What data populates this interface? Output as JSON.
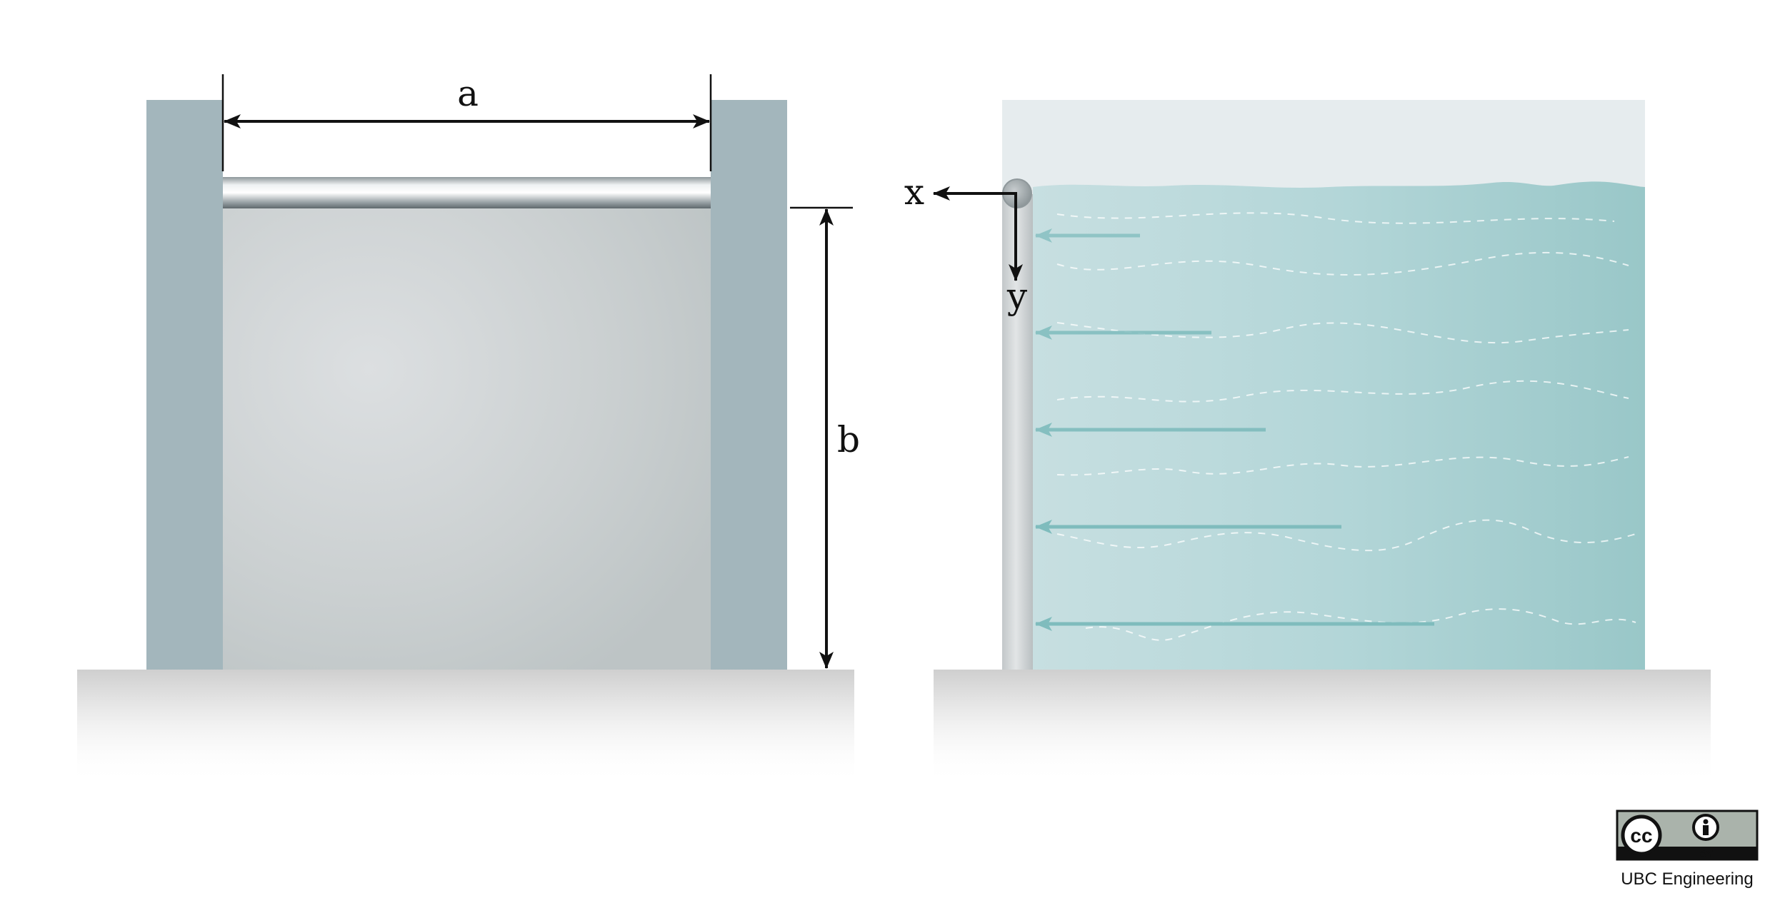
{
  "figure": {
    "left_panel": {
      "width_label": "a",
      "height_label": "b"
    },
    "right_panel": {
      "x_axis_label": "x",
      "y_axis_label": "y",
      "pressure_arrow_count": 5
    },
    "license": {
      "cc_text": "cc",
      "by_text": "BY",
      "attribution": "UBC Engineering"
    },
    "colors": {
      "wall": "#a3b6bc",
      "gate": "#c6cbcc",
      "water": "#9fcacb",
      "air": "#e6ecee",
      "ground": "#cfcfcf",
      "arrow": "#7fbcbd",
      "dimension": "#111111"
    }
  }
}
